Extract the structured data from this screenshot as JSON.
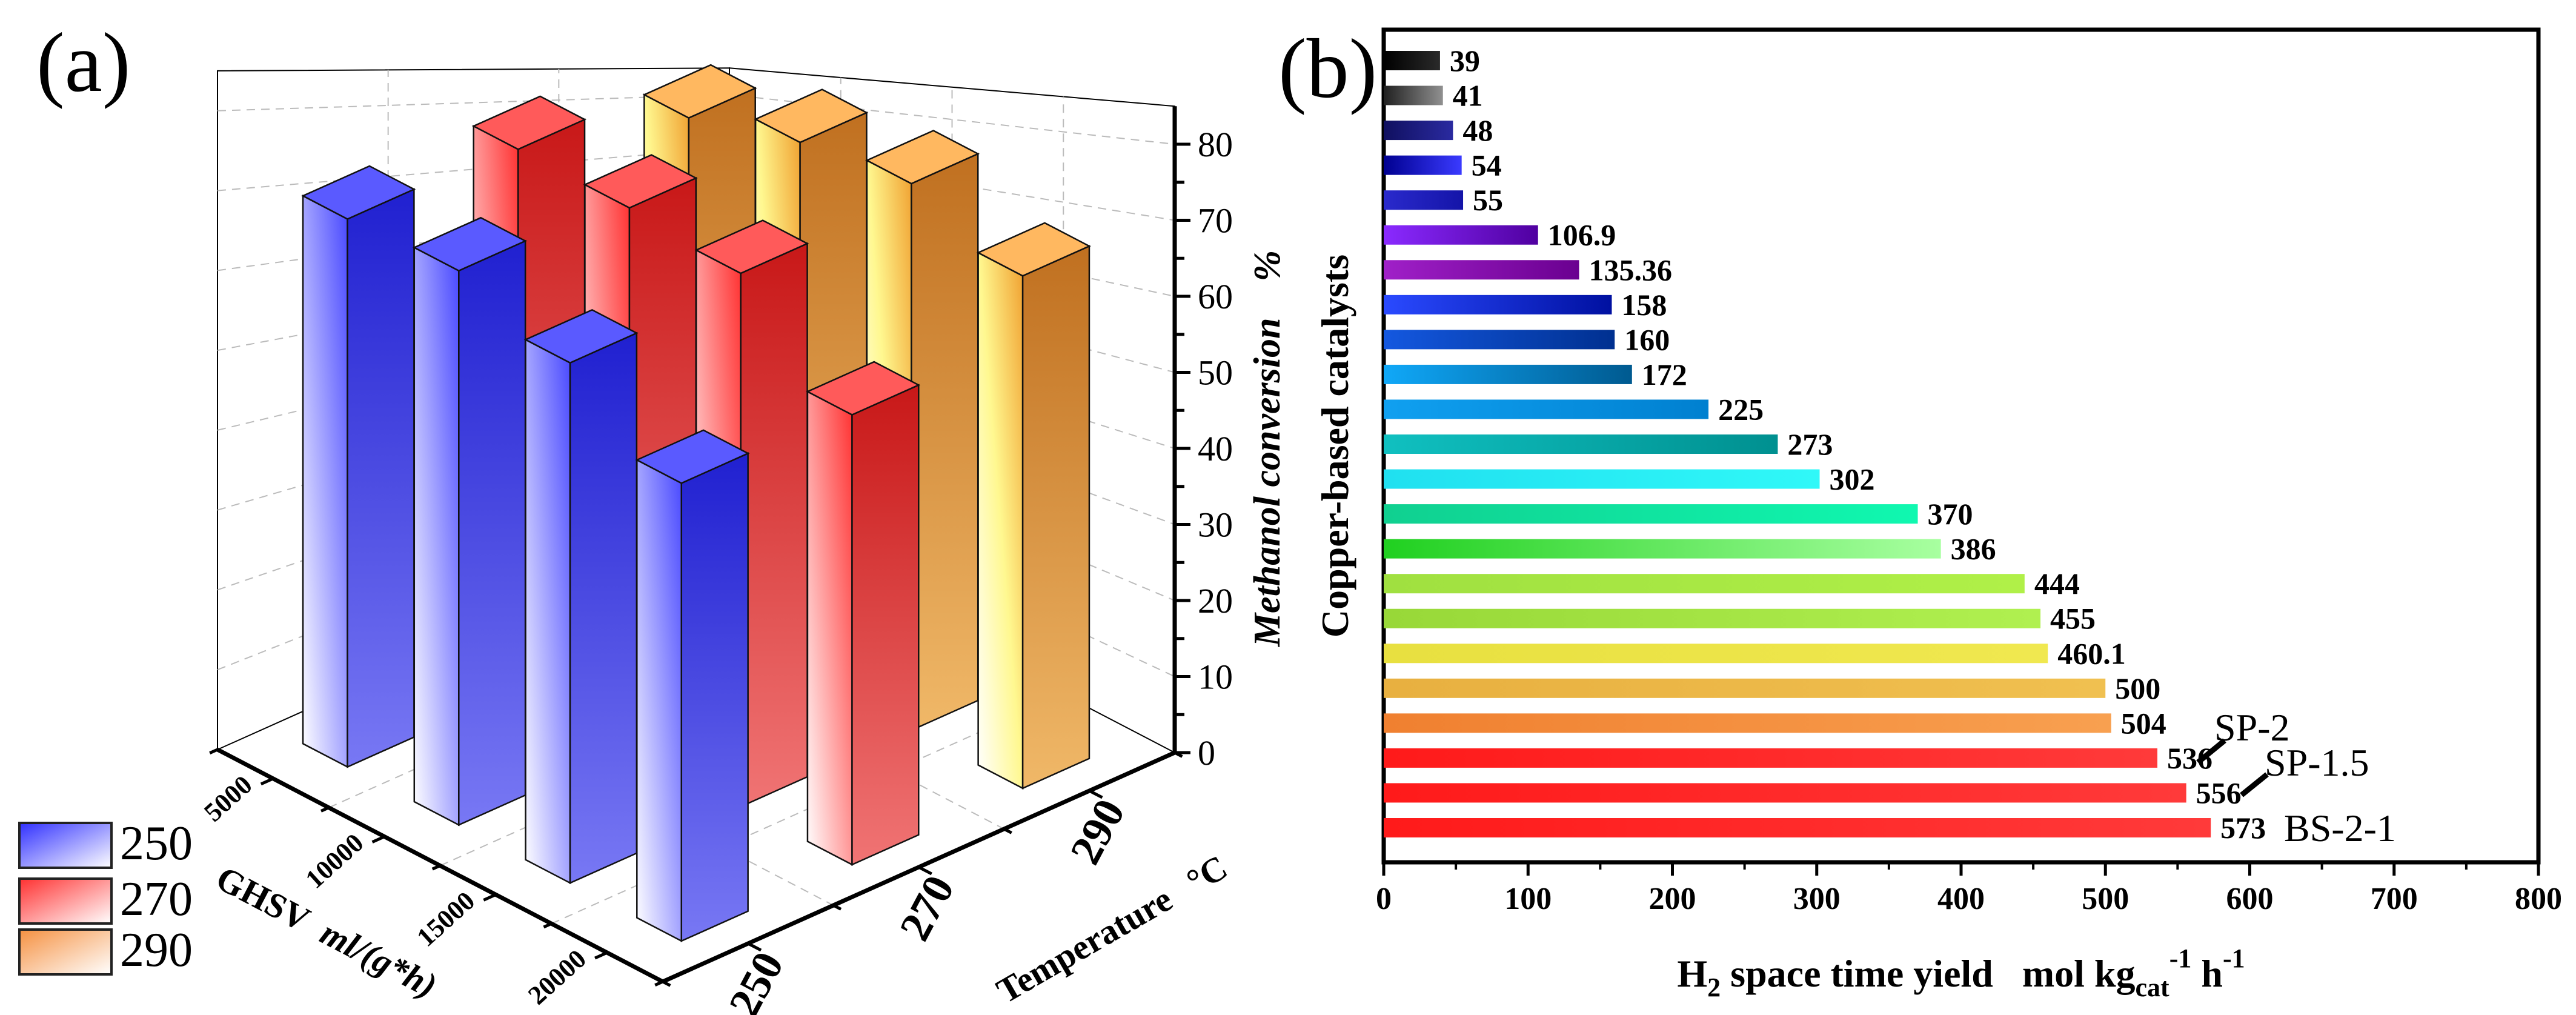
{
  "panel_a": {
    "label": "(a)"
  },
  "panel_b": {
    "label": "(b)"
  },
  "chart_data": [
    {
      "type": "bar3d",
      "x_axis": {
        "title": "GHSV",
        "unit": "ml/(g*h)",
        "categories": [
          "5000",
          "10000",
          "15000",
          "20000"
        ]
      },
      "y_axis": {
        "title": "Temperature",
        "unit": "°C",
        "categories": [
          "250",
          "270",
          "290"
        ]
      },
      "z_axis": {
        "title": "Methanol conversion",
        "unit": "%",
        "range": [
          0,
          85
        ],
        "ticks": [
          "0",
          "10",
          "20",
          "30",
          "40",
          "50",
          "60",
          "70",
          "80"
        ]
      },
      "series": [
        {
          "name": "250",
          "values": [
            70,
            66,
            58,
            48
          ],
          "color": "#3a3aff"
        },
        {
          "name": "270",
          "values": [
            78,
            72,
            66,
            52
          ],
          "color": "#ff3030"
        },
        {
          "name": "290",
          "values": [
            82,
            80,
            76,
            66
          ],
          "color": "#f0a030"
        }
      ],
      "legend": {
        "position": "bottom-left",
        "entries": [
          "250",
          "270",
          "290"
        ]
      },
      "grid": true
    },
    {
      "type": "bar",
      "orientation": "horizontal",
      "ylabel": "Copper-based catalysts",
      "xlabel": {
        "main": "H",
        "sub1": "2",
        "rest": " space time yield   mol kg",
        "sub2": "cat",
        "sup1": "-1",
        "mid": " h",
        "sup2": "-1"
      },
      "xlim": [
        0,
        800
      ],
      "xticks": [
        "0",
        "100",
        "200",
        "300",
        "400",
        "500",
        "600",
        "700",
        "800"
      ],
      "values": [
        39,
        41,
        48,
        54,
        55,
        106.9,
        135.36,
        158,
        160,
        172,
        225,
        273,
        302,
        370,
        386,
        444,
        455,
        460.1,
        500,
        504,
        536,
        556,
        573
      ],
      "value_labels": [
        "39",
        "41",
        "48",
        "54",
        "55",
        "106.9",
        "135.36",
        "158",
        "160",
        "172",
        "225",
        "273",
        "302",
        "370",
        "386",
        "444",
        "455",
        "460.1",
        "500",
        "504",
        "536",
        "556",
        "573"
      ],
      "colors": [
        [
          "#000000",
          "#2a2a2a"
        ],
        [
          "#202020",
          "#909090"
        ],
        [
          "#101060",
          "#2a2aa0"
        ],
        [
          "#000090",
          "#3a3aff"
        ],
        [
          "#2a2acc",
          "#1414a8"
        ],
        [
          "#8a2aff",
          "#5000a0"
        ],
        [
          "#a020c8",
          "#6a0090"
        ],
        [
          "#2a4aff",
          "#0010a0"
        ],
        [
          "#1458e0",
          "#003090"
        ],
        [
          "#10a8f8",
          "#005a90"
        ],
        [
          "#10a0f0",
          "#0080d0"
        ],
        [
          "#10c0c0",
          "#009090"
        ],
        [
          "#20e0f0",
          "#30f8f8"
        ],
        [
          "#10d090",
          "#10f8b0"
        ],
        [
          "#20d020",
          "#a8ffa0"
        ],
        [
          "#a0e040",
          "#b0f048"
        ],
        [
          "#98d838",
          "#b0f050"
        ],
        [
          "#e8e040",
          "#f0e850"
        ],
        [
          "#e8b040",
          "#f0c050"
        ],
        [
          "#f08030",
          "#f8a050"
        ],
        [
          "#ff1a1a",
          "#ff3a3a"
        ],
        [
          "#ff1a1a",
          "#ff3a3a"
        ],
        [
          "#ff1a1a",
          "#ff3a3a"
        ]
      ],
      "annotations": [
        {
          "text": "SP-2",
          "value_label": "536"
        },
        {
          "text": "SP-1.5",
          "value_label": "556"
        },
        {
          "text": "BS-2-1",
          "value_label": "573"
        }
      ]
    }
  ]
}
